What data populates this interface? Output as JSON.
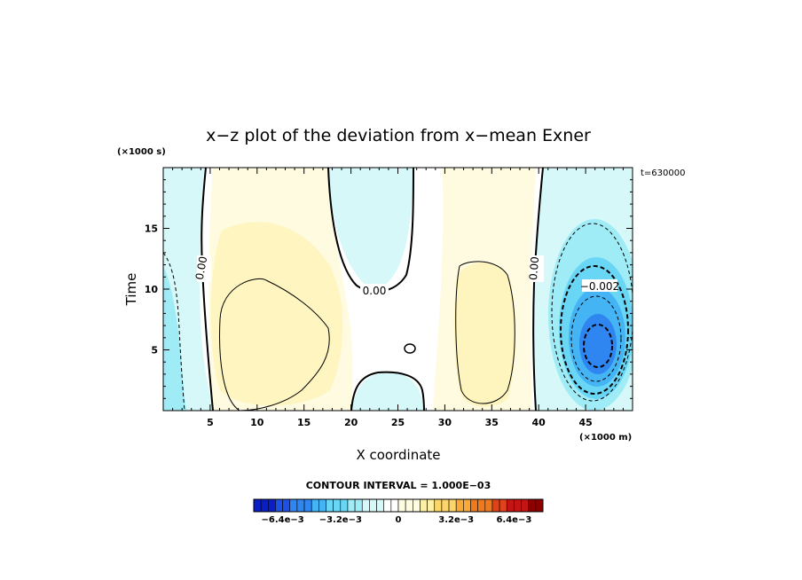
{
  "chart_data": {
    "type": "heatmap",
    "title": "x−z plot of the deviation from x−mean Exner",
    "xlabel": "X coordinate",
    "ylabel": "Time",
    "x_unit": "(×1000 m)",
    "y_unit": "(×1000 s)",
    "time_label": "t=630000",
    "xlim": [
      0,
      50
    ],
    "ylim": [
      0,
      20
    ],
    "x_ticks": [
      5,
      10,
      15,
      20,
      25,
      30,
      35,
      40,
      45
    ],
    "y_ticks": [
      5,
      10,
      15
    ],
    "contour_interval_label": "CONTOUR INTERVAL = 1.000E−03",
    "contour_labels": [
      "0.00",
      "0.00",
      "0.00",
      "−0.002"
    ],
    "colorbar": {
      "tick_labels": [
        "−6.4e−3",
        "−3.2e−3",
        "0",
        "3.2e−3",
        "6.4e−3"
      ],
      "tick_values": [
        -0.0064,
        -0.0032,
        0,
        0.0032,
        0.0064
      ],
      "range": [
        -0.008,
        0.008
      ],
      "colors": [
        "#0a1ec8",
        "#1e50e6",
        "#2f86f0",
        "#45b4f4",
        "#6ad6f6",
        "#a0ecf6",
        "#d6f8f8",
        "#ffffff",
        "#fffbe0",
        "#fdf0a6",
        "#fbd56a",
        "#f7aa3a",
        "#ef7a1e",
        "#e0421a",
        "#c41414",
        "#8c0000"
      ]
    },
    "features": [
      {
        "kind": "positive",
        "center_x": 11,
        "center_t": 5.5,
        "peak": 0.0008
      },
      {
        "kind": "positive",
        "center_x": 34,
        "center_t": 6,
        "peak": 0.0008
      },
      {
        "kind": "negative",
        "center_x": 46,
        "center_t": 5.5,
        "peak": -0.0045
      },
      {
        "kind": "negative",
        "center_x": 1,
        "center_t": 8,
        "peak": -0.0012
      },
      {
        "kind": "negative",
        "center_x": 25,
        "center_t": 16,
        "peak": -0.0004
      },
      {
        "kind": "negative",
        "center_x": 25,
        "center_t": 1.5,
        "peak": -0.0003
      }
    ]
  }
}
